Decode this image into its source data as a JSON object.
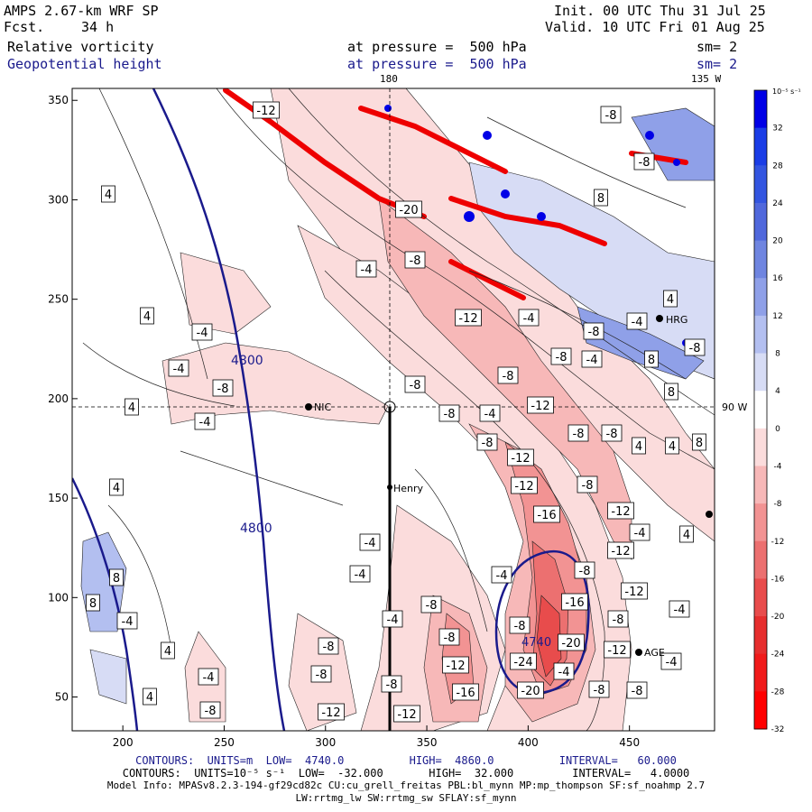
{
  "header": {
    "model": "AMPS 2.67-km WRF SP",
    "fcst_label": "Fcst.",
    "fcst_value": "34 h",
    "init": "Init. 00 UTC Thu 31 Jul 25",
    "valid": "Valid. 10 UTC Fri 01 Aug 25",
    "field1": "Relative vorticity",
    "field1_level": "at pressure =  500 hPa",
    "field1_sm": "sm= 2",
    "field2": "Geopotential height",
    "field2_level": "at pressure =  500 hPa",
    "field2_sm": "sm= 2"
  },
  "map_labels": {
    "lon180": "180",
    "lon135": "135 W",
    "lon90": "90 W",
    "stations": [
      "NIC",
      "Henry",
      "HRG",
      "AGE"
    ]
  },
  "colorbar": {
    "unit": "10⁻⁵ s⁻¹",
    "ticks": [
      "32",
      "28",
      "24",
      "20",
      "16",
      "12",
      "8",
      "4",
      "0",
      "-4",
      "-8",
      "-12",
      "-16",
      "-20",
      "-24",
      "-28",
      "-32"
    ],
    "colors": [
      "#0000e6",
      "#1a3de6",
      "#3355e0",
      "#5068dc",
      "#6f85e0",
      "#8fa0e8",
      "#b3bff0",
      "#d7dcf5",
      "#ffffff",
      "#fbdcdc",
      "#f7b8b8",
      "#f29393",
      "#ec7070",
      "#e84c4c",
      "#e62e2e",
      "#f01a1a",
      "#ff0000"
    ]
  },
  "chart_data": {
    "type": "contour",
    "x_ticks": [
      "200",
      "250",
      "300",
      "350",
      "400",
      "450"
    ],
    "y_ticks": [
      "350",
      "300",
      "250",
      "200",
      "150",
      "100",
      "50"
    ],
    "xlim": [
      175,
      492
    ],
    "ylim": [
      33,
      356
    ],
    "height_contour_labels": [
      "4800",
      "4800",
      "4740"
    ],
    "vorticity_labels": [
      {
        "t": "-12",
        "x": 295,
        "y": 122
      },
      {
        "t": "4",
        "x": 120,
        "y": 215
      },
      {
        "t": "-20",
        "x": 453,
        "y": 232
      },
      {
        "t": "-8",
        "x": 460,
        "y": 288
      },
      {
        "t": "-4",
        "x": 406,
        "y": 298
      },
      {
        "t": "4",
        "x": 163,
        "y": 350
      },
      {
        "t": "-12",
        "x": 519,
        "y": 352
      },
      {
        "t": "-4",
        "x": 586,
        "y": 352
      },
      {
        "t": "-4",
        "x": 224,
        "y": 368
      },
      {
        "t": "-4",
        "x": 198,
        "y": 408
      },
      {
        "t": "-8",
        "x": 247,
        "y": 430
      },
      {
        "t": "-8",
        "x": 460,
        "y": 426
      },
      {
        "t": "-8",
        "x": 563,
        "y": 416
      },
      {
        "t": "-8",
        "x": 622,
        "y": 395
      },
      {
        "t": "-4",
        "x": 656,
        "y": 398
      },
      {
        "t": "-8",
        "x": 658,
        "y": 367
      },
      {
        "t": "-4",
        "x": 706,
        "y": 356
      },
      {
        "t": "4",
        "x": 743,
        "y": 331
      },
      {
        "t": "-8",
        "x": 770,
        "y": 385
      },
      {
        "t": "8",
        "x": 722,
        "y": 398
      },
      {
        "t": "8",
        "x": 744,
        "y": 434
      },
      {
        "t": "4",
        "x": 146,
        "y": 451
      },
      {
        "t": "-4",
        "x": 227,
        "y": 467
      },
      {
        "t": "-8",
        "x": 498,
        "y": 458
      },
      {
        "t": "-4",
        "x": 543,
        "y": 458
      },
      {
        "t": "-12",
        "x": 599,
        "y": 449
      },
      {
        "t": "-8",
        "x": 540,
        "y": 490
      },
      {
        "t": "-8",
        "x": 641,
        "y": 480
      },
      {
        "t": "-8",
        "x": 678,
        "y": 480
      },
      {
        "t": "4",
        "x": 708,
        "y": 494
      },
      {
        "t": "4",
        "x": 745,
        "y": 494
      },
      {
        "t": "8",
        "x": 775,
        "y": 490
      },
      {
        "t": "-12",
        "x": 577,
        "y": 507
      },
      {
        "t": "-12",
        "x": 581,
        "y": 538
      },
      {
        "t": "-8",
        "x": 651,
        "y": 537
      },
      {
        "t": "4",
        "x": 129,
        "y": 540
      },
      {
        "t": "-16",
        "x": 606,
        "y": 570
      },
      {
        "t": "-12",
        "x": 688,
        "y": 566
      },
      {
        "t": "-4",
        "x": 709,
        "y": 590
      },
      {
        "t": "4",
        "x": 761,
        "y": 592
      },
      {
        "t": "-4",
        "x": 410,
        "y": 601
      },
      {
        "t": "-4",
        "x": 399,
        "y": 636
      },
      {
        "t": "-12",
        "x": 688,
        "y": 610
      },
      {
        "t": "8",
        "x": 129,
        "y": 640
      },
      {
        "t": "-8",
        "x": 648,
        "y": 632
      },
      {
        "t": "-4",
        "x": 556,
        "y": 637
      },
      {
        "t": "-12",
        "x": 703,
        "y": 655
      },
      {
        "t": "-16",
        "x": 637,
        "y": 667
      },
      {
        "t": "8",
        "x": 103,
        "y": 668
      },
      {
        "t": "-8",
        "x": 478,
        "y": 670
      },
      {
        "t": "-4",
        "x": 753,
        "y": 675
      },
      {
        "t": "-4",
        "x": 141,
        "y": 688
      },
      {
        "t": "-4",
        "x": 435,
        "y": 686
      },
      {
        "t": "-8",
        "x": 685,
        "y": 686
      },
      {
        "t": "-8",
        "x": 576,
        "y": 693
      },
      {
        "t": "-8",
        "x": 498,
        "y": 706
      },
      {
        "t": "-20",
        "x": 633,
        "y": 712
      },
      {
        "t": "4",
        "x": 186,
        "y": 721
      },
      {
        "t": "-8",
        "x": 364,
        "y": 716
      },
      {
        "t": "-12",
        "x": 684,
        "y": 720
      },
      {
        "t": "-12",
        "x": 505,
        "y": 737
      },
      {
        "t": "-24",
        "x": 580,
        "y": 733
      },
      {
        "t": "-4",
        "x": 744,
        "y": 733
      },
      {
        "t": "-4",
        "x": 625,
        "y": 744
      },
      {
        "t": "-8",
        "x": 356,
        "y": 747
      },
      {
        "t": "-4",
        "x": 231,
        "y": 750
      },
      {
        "t": "-8",
        "x": 434,
        "y": 758
      },
      {
        "t": "-16",
        "x": 516,
        "y": 767
      },
      {
        "t": "-8",
        "x": 664,
        "y": 764
      },
      {
        "t": "-8",
        "x": 706,
        "y": 765
      },
      {
        "t": "4",
        "x": 166,
        "y": 772
      },
      {
        "t": "-8",
        "x": 233,
        "y": 787
      },
      {
        "t": "-12",
        "x": 367,
        "y": 789
      },
      {
        "t": "-12",
        "x": 451,
        "y": 791
      },
      {
        "t": "-20",
        "x": 588,
        "y": 765
      },
      {
        "t": "-8",
        "x": 677,
        "y": 127
      },
      {
        "t": "-8",
        "x": 714,
        "y": 179
      },
      {
        "t": "8",
        "x": 666,
        "y": 219
      }
    ]
  },
  "footer": {
    "line1_a": "CONTOURS:  UNITS=m  LOW=  4740.0",
    "line1_b": "HIGH=  4860.0",
    "line1_c": "INTERVAL=   60.000",
    "line2_a": "CONTOURS:  UNITS=10⁻⁵ s⁻¹  LOW=  -32.000",
    "line2_b": "HIGH=  32.000",
    "line2_c": "INTERVAL=   4.0000",
    "line3": "Model Info: MPASv8.2.3-194-gf29cd82c CU:cu_grell_freitas PBL:bl_mynn MP:mp_thompson SF:sf_noahmp 2.7",
    "line4": "LW:rrtmg_lw SW:rrtmg_sw SFLAY:sf_mynn"
  }
}
